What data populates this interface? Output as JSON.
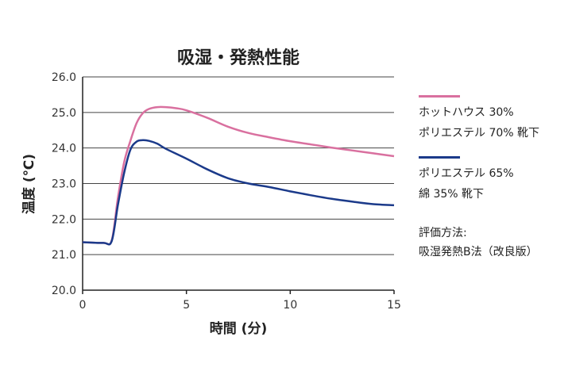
{
  "chart_data": {
    "type": "line",
    "title": "吸湿・発熱性能",
    "xlabel": "時間 (分)",
    "ylabel": "温度 (℃)",
    "xlim": [
      0,
      15
    ],
    "ylim": [
      20.0,
      26.0
    ],
    "xticks": [
      0,
      5,
      10,
      15
    ],
    "xtick_labels": [
      "0",
      "5",
      "10",
      "15"
    ],
    "yticks": [
      20.0,
      21.0,
      22.0,
      23.0,
      24.0,
      25.0,
      26.0
    ],
    "ytick_labels": [
      "20.0",
      "21.0",
      "22.0",
      "23.0",
      "24.0",
      "25.0",
      "26.0"
    ],
    "grid": "horizontal",
    "series": [
      {
        "name": "ホットハウス 30% ポリエステル 70% 靴下",
        "color": "#d9709f",
        "x": [
          0,
          1.0,
          1.4,
          1.7,
          2.0,
          2.3,
          2.6,
          2.9,
          3.2,
          3.6,
          4.0,
          4.5,
          5.0,
          6.0,
          7.0,
          8.0,
          9.0,
          10.0,
          11.0,
          12.0,
          13.0,
          14.0,
          15.0
        ],
        "y": [
          21.35,
          21.33,
          21.4,
          22.6,
          23.6,
          24.2,
          24.7,
          24.98,
          25.1,
          25.15,
          25.15,
          25.12,
          25.06,
          24.85,
          24.6,
          24.42,
          24.3,
          24.19,
          24.1,
          24.01,
          23.93,
          23.85,
          23.77
        ]
      },
      {
        "name": "ポリエステル 65% 綿 35% 靴下",
        "color": "#1b3a8a",
        "x": [
          0,
          1.0,
          1.4,
          1.7,
          2.0,
          2.3,
          2.6,
          2.9,
          3.2,
          3.6,
          4.0,
          5.0,
          6.0,
          7.0,
          8.0,
          9.0,
          10.0,
          11.0,
          12.0,
          13.0,
          14.0,
          15.0
        ],
        "y": [
          21.35,
          21.33,
          21.38,
          22.4,
          23.3,
          23.95,
          24.18,
          24.22,
          24.2,
          24.12,
          23.98,
          23.7,
          23.4,
          23.15,
          23.0,
          22.9,
          22.78,
          22.67,
          22.57,
          22.49,
          22.42,
          22.39
        ]
      }
    ]
  },
  "legend": [
    {
      "line1": "ホットハウス 30%",
      "line2": "ポリエステル 70% 靴下",
      "color": "#d9709f"
    },
    {
      "line1": "ポリエステル 65%",
      "line2": "綿 35% 靴下",
      "color": "#1b3a8a"
    }
  ],
  "note": {
    "line1": "評価方法:",
    "line2": "吸湿発熱B法（改良版）"
  }
}
